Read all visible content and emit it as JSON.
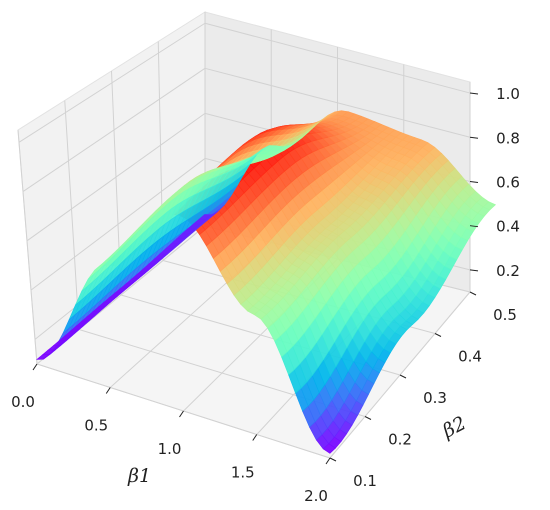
{
  "chart_data": {
    "type": "surface3d",
    "title": "",
    "xlabel": "β1",
    "ylabel": "β2",
    "zlabel": "",
    "x_ticks": [
      "0.0",
      "0.5",
      "1.0",
      "1.5",
      "2.0"
    ],
    "y_ticks": [
      "0.1",
      "0.2",
      "0.3",
      "0.4",
      "0.5"
    ],
    "z_ticks": [
      "0.2",
      "0.4",
      "0.6",
      "0.8",
      "1.0"
    ],
    "xlim": [
      0,
      2
    ],
    "ylim": [
      0.1,
      0.5
    ],
    "zlim": [
      0.1,
      1.05
    ],
    "colormap": "rainbow",
    "grid": true,
    "surface_samples": {
      "x": [
        0.0,
        0.5,
        1.0,
        1.5,
        2.0
      ],
      "y_at_0.1": [
        0.12,
        0.63,
        0.95,
        0.62,
        0.12
      ],
      "y_at_0.3": [
        0.13,
        0.68,
        0.98,
        0.7,
        0.38
      ],
      "y_at_0.5": [
        0.15,
        0.55,
        0.8,
        0.78,
        0.6
      ]
    }
  }
}
